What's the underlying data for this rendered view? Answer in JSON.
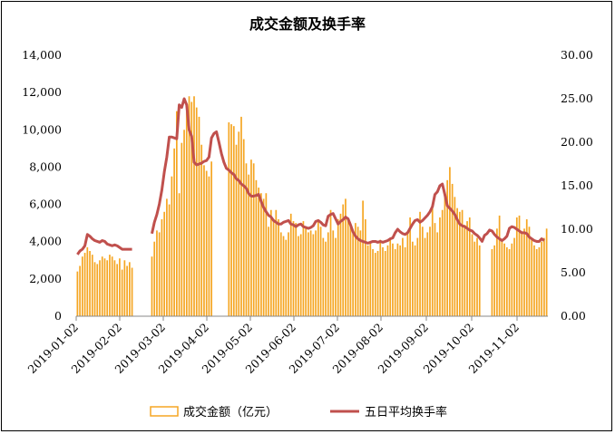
{
  "chart_data": {
    "type": "bar+line",
    "title": "成交金额及换手率",
    "x_ticks": [
      "2019-01-02",
      "2019-02-02",
      "2019-03-02",
      "2019-04-02",
      "2019-05-02",
      "2019-06-02",
      "2019-07-02",
      "2019-08-02",
      "2019-09-02",
      "2019-10-02",
      "2019-11-02"
    ],
    "y_left_ticks": [
      "0",
      "2,000",
      "4,000",
      "6,000",
      "8,000",
      "10,000",
      "12,000",
      "14,000"
    ],
    "y_right_ticks": [
      "0.00",
      "5.00",
      "10.00",
      "15.00",
      "20.00",
      "25.00",
      "30.00"
    ],
    "ylim_left": [
      0,
      14000
    ],
    "ylim_right": [
      0,
      30
    ],
    "colors": {
      "bar": "#F5A623",
      "line": "#C0504D"
    },
    "legend_position": "bottom",
    "series": [
      {
        "name": "成交金额（亿元）",
        "kind": "bar",
        "axis": "left",
        "values": [
          2400,
          2700,
          3200,
          3400,
          3700,
          3500,
          3300,
          2900,
          2800,
          3000,
          3200,
          3100,
          3000,
          3300,
          3200,
          3000,
          2800,
          3100,
          2500,
          3000,
          2700,
          2900,
          2600,
          0,
          0,
          0,
          0,
          0,
          0,
          0,
          3200,
          4000,
          4600,
          4500,
          5200,
          5600,
          6300,
          6000,
          7500,
          9000,
          11000,
          6600,
          9300,
          10000,
          11000,
          11800,
          11500,
          11800,
          11200,
          10700,
          9200,
          8100,
          7800,
          7500,
          8300,
          0,
          0,
          0,
          0,
          0,
          0,
          10400,
          10300,
          10200,
          9200,
          9900,
          10700,
          9500,
          8200,
          7600,
          8400,
          8200,
          7300,
          6900,
          6600,
          6300,
          6600,
          4800,
          5700,
          5200,
          5700,
          5200,
          4500,
          4300,
          4100,
          4500,
          5500,
          5100,
          5000,
          4300,
          4400,
          5100,
          4700,
          4500,
          4600,
          4400,
          4600,
          5200,
          4800,
          4200,
          4000,
          4500,
          5700,
          4600,
          4200,
          5200,
          5500,
          6000,
          6300,
          5200,
          4900,
          4600,
          5000,
          4800,
          4600,
          6200,
          5200,
          3800,
          4000,
          3600,
          3400,
          3500,
          4100,
          3700,
          3500,
          3800,
          4200,
          3900,
          3600,
          3900,
          3800,
          4200,
          3700,
          4500,
          5300,
          4000,
          3800,
          4200,
          5600,
          4800,
          4200,
          4500,
          4800,
          5900,
          5000,
          4500,
          5300,
          5700,
          6500,
          7300,
          8000,
          7100,
          6400,
          5800,
          5600,
          5700,
          4900,
          5100,
          5300,
          4400,
          4000,
          4200,
          3800,
          0,
          0,
          0,
          0,
          3600,
          3800,
          4700,
          5400,
          4100,
          3900,
          3700,
          3600,
          3900,
          4200,
          5300,
          5400,
          4500,
          4700,
          5200,
          4800,
          4200,
          3800,
          3600,
          3700,
          4000,
          4200,
          4700
        ]
      },
      {
        "name": "五日平均换手率",
        "kind": "line",
        "axis": "right",
        "values": [
          7.1,
          7.5,
          7.7,
          8.1,
          9.4,
          9.2,
          8.9,
          8.7,
          8.6,
          8.5,
          8.7,
          8.6,
          8.3,
          8.2,
          8.1,
          8.2,
          8.1,
          7.9,
          7.7,
          7.7,
          7.7,
          7.7,
          7.7,
          null,
          null,
          null,
          null,
          null,
          null,
          null,
          9.5,
          10.8,
          11.7,
          12.9,
          14.5,
          16.6,
          18.3,
          20.6,
          20.6,
          20.5,
          20.4,
          24.3,
          24.0,
          25.0,
          24.3,
          21.4,
          20.7,
          17.7,
          17.4,
          17.5,
          17.6,
          17.8,
          17.9,
          18.3,
          20.5,
          21.0,
          21.2,
          20.0,
          18.7,
          17.7,
          17.0,
          16.8,
          16.5,
          16.3,
          15.8,
          15.6,
          15.2,
          15.0,
          14.7,
          14.1,
          13.8,
          13.8,
          13.9,
          14.0,
          13.2,
          12.5,
          12.0,
          11.6,
          11.4,
          11.0,
          10.8,
          10.6,
          10.6,
          10.8,
          10.9,
          11.0,
          10.6,
          10.5,
          10.3,
          10.5,
          10.6,
          10.3,
          10.2,
          10.1,
          10.2,
          10.4,
          10.9,
          11.0,
          10.8,
          10.5,
          10.4,
          11.5,
          11.7,
          11.8,
          11.2,
          10.6,
          10.9,
          11.1,
          11.4,
          11.2,
          10.5,
          9.7,
          9.2,
          8.9,
          8.7,
          8.6,
          8.5,
          8.4,
          8.5,
          8.6,
          8.6,
          8.5,
          8.6,
          8.5,
          8.6,
          8.7,
          8.9,
          9.0,
          9.6,
          10.0,
          9.7,
          9.5,
          9.4,
          9.6,
          10.1,
          10.6,
          11.0,
          11.1,
          10.8,
          11.0,
          11.3,
          11.6,
          12.0,
          12.6,
          14.0,
          14.3,
          15.0,
          15.2,
          14.0,
          12.7,
          12.4,
          12.1,
          11.7,
          11.1,
          10.6,
          10.4,
          10.3,
          10.1,
          9.9,
          9.8,
          9.5,
          9.3,
          9.0,
          8.6,
          9.3,
          9.5,
          9.9,
          9.8,
          9.4,
          9.1,
          8.9,
          8.7,
          8.9,
          9.2,
          10.1,
          10.3,
          10.2,
          10.0,
          9.8,
          9.6,
          9.6,
          9.5,
          9.1,
          8.9,
          8.7,
          8.6,
          8.6,
          8.9,
          8.7
        ]
      }
    ]
  }
}
